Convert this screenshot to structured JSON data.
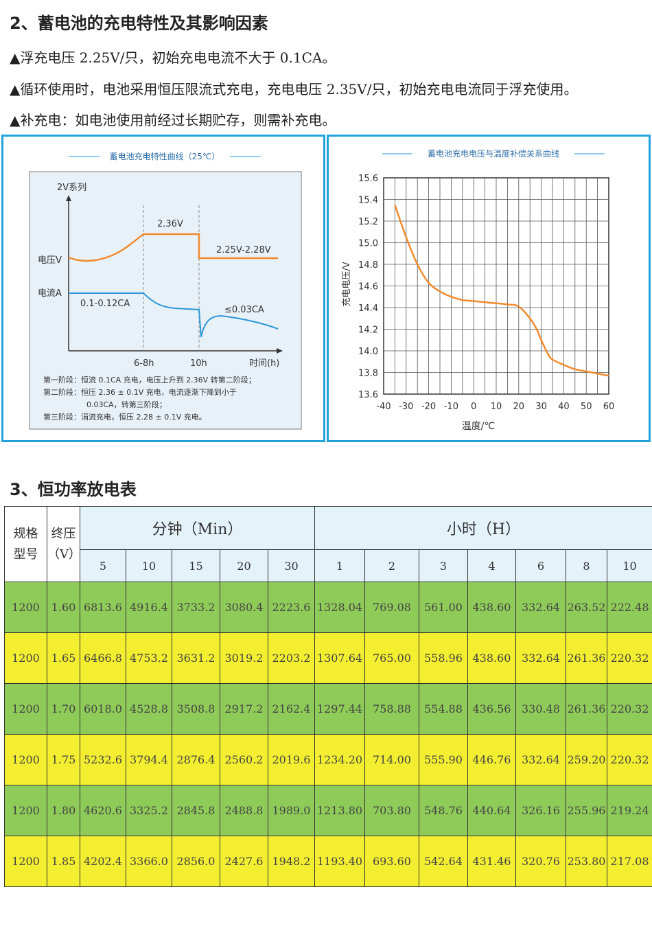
{
  "section2": {
    "title": "2、蓄电池的充电特性及其影响因素",
    "lines": [
      "▲浮充电压 2.25V/只，初始充电电流不大于 0.1CA。",
      "▲循环使用时，电池采用恒压限流式充电，充电电压 2.35V/只，初始充电电流同于浮充使用。",
      "▲补充电：如电池使用前经过长期贮存，则需补充电。"
    ]
  },
  "chart1": {
    "title": "蓄电池充电特性曲线（25℃）",
    "series_label": "2V系列",
    "voltage_label": "电压V",
    "current_label": "电流A",
    "v_high": "2.36V",
    "v_float": "2.25V-2.28V",
    "i_initial": "0.1-0.12CA",
    "i_final": "≤0.03CA",
    "x_ticks": [
      "6-8h",
      "10h",
      "时间(h)"
    ],
    "notes": [
      "第一阶段：恒流 0.1CA 充电，电压上升到 2.36V 转第二阶段；",
      "第二阶段：恒压 2.36 ± 0.1V 充电，电流逐渐下降到小于",
      "0.03CA，转第三阶段；",
      "第三阶段：涓流充电，恒压 2.28 ± 0.1V 充电。"
    ],
    "colors": {
      "voltage": "#f08a2c",
      "current": "#2b97d8",
      "bg": "#e8f1f8"
    }
  },
  "chart_data": {
    "type": "line",
    "title": "蓄电池充电电压与温度补偿关系曲线",
    "xlabel": "温度/℃",
    "ylabel": "充电电压/V",
    "x": [
      -35,
      -30,
      -25,
      -20,
      -15,
      -10,
      -5,
      0,
      5,
      10,
      15,
      20,
      25,
      28,
      30,
      33,
      35,
      40,
      45,
      50,
      55,
      60
    ],
    "y": [
      15.35,
      15.05,
      14.8,
      14.63,
      14.55,
      14.5,
      14.47,
      14.46,
      14.45,
      14.44,
      14.43,
      14.41,
      14.3,
      14.2,
      14.1,
      13.97,
      13.92,
      13.87,
      13.83,
      13.81,
      13.79,
      13.77
    ],
    "x_ticks": [
      "-40",
      "-30",
      "-20",
      "-10",
      "0",
      "10",
      "20",
      "30",
      "40",
      "50",
      "60"
    ],
    "y_ticks": [
      "15.6",
      "15.4",
      "15.2",
      "15.0",
      "14.8",
      "14.6",
      "14.4",
      "14.2",
      "14.0",
      "13.8",
      "13.6"
    ],
    "xlim": [
      -40,
      60
    ],
    "ylim": [
      13.6,
      15.6
    ],
    "grid": true,
    "color": "#f08a2c"
  },
  "section3": {
    "title": "3、恒功率放电表"
  },
  "table": {
    "spec_header": [
      "规格",
      "型号"
    ],
    "end_header": [
      "终压",
      "（V）"
    ],
    "group_min": "分钟（Min）",
    "group_hour": "小时（H）",
    "cols": [
      "5",
      "10",
      "15",
      "20",
      "30",
      "1",
      "2",
      "3",
      "4",
      "6",
      "8",
      "10"
    ],
    "rows": [
      [
        "1200",
        "1.60",
        "6813.6",
        "4916.4",
        "3733.2",
        "3080.4",
        "2223.6",
        "1328.04",
        "769.08",
        "561.00",
        "438.60",
        "332.64",
        "263.52",
        "222.48"
      ],
      [
        "1200",
        "1.65",
        "6466.8",
        "4753.2",
        "3631.2",
        "3019.2",
        "2203.2",
        "1307.64",
        "765.00",
        "558.96",
        "438.60",
        "332.64",
        "261.36",
        "220.32"
      ],
      [
        "1200",
        "1.70",
        "6018.0",
        "4528.8",
        "3508.8",
        "2917.2",
        "2162.4",
        "1297.44",
        "758.88",
        "554.88",
        "436.56",
        "330.48",
        "261.36",
        "220.32"
      ],
      [
        "1200",
        "1.75",
        "5232.6",
        "3794.4",
        "2876.4",
        "2560.2",
        "2019.6",
        "1234.20",
        "714.00",
        "555.90",
        "446.76",
        "332.64",
        "259.20",
        "220.32"
      ],
      [
        "1200",
        "1.80",
        "4620.6",
        "3325.2",
        "2845.8",
        "2488.8",
        "1989.0",
        "1213.80",
        "703.80",
        "548.76",
        "440.64",
        "326.16",
        "255.96",
        "219.24"
      ],
      [
        "1200",
        "1.85",
        "4202.4",
        "3366.0",
        "2856.0",
        "2427.6",
        "1948.2",
        "1193.40",
        "693.60",
        "542.64",
        "431.46",
        "320.76",
        "253.80",
        "217.08"
      ]
    ],
    "row_colors": [
      "#8fcb59",
      "#f4ee31"
    ]
  }
}
